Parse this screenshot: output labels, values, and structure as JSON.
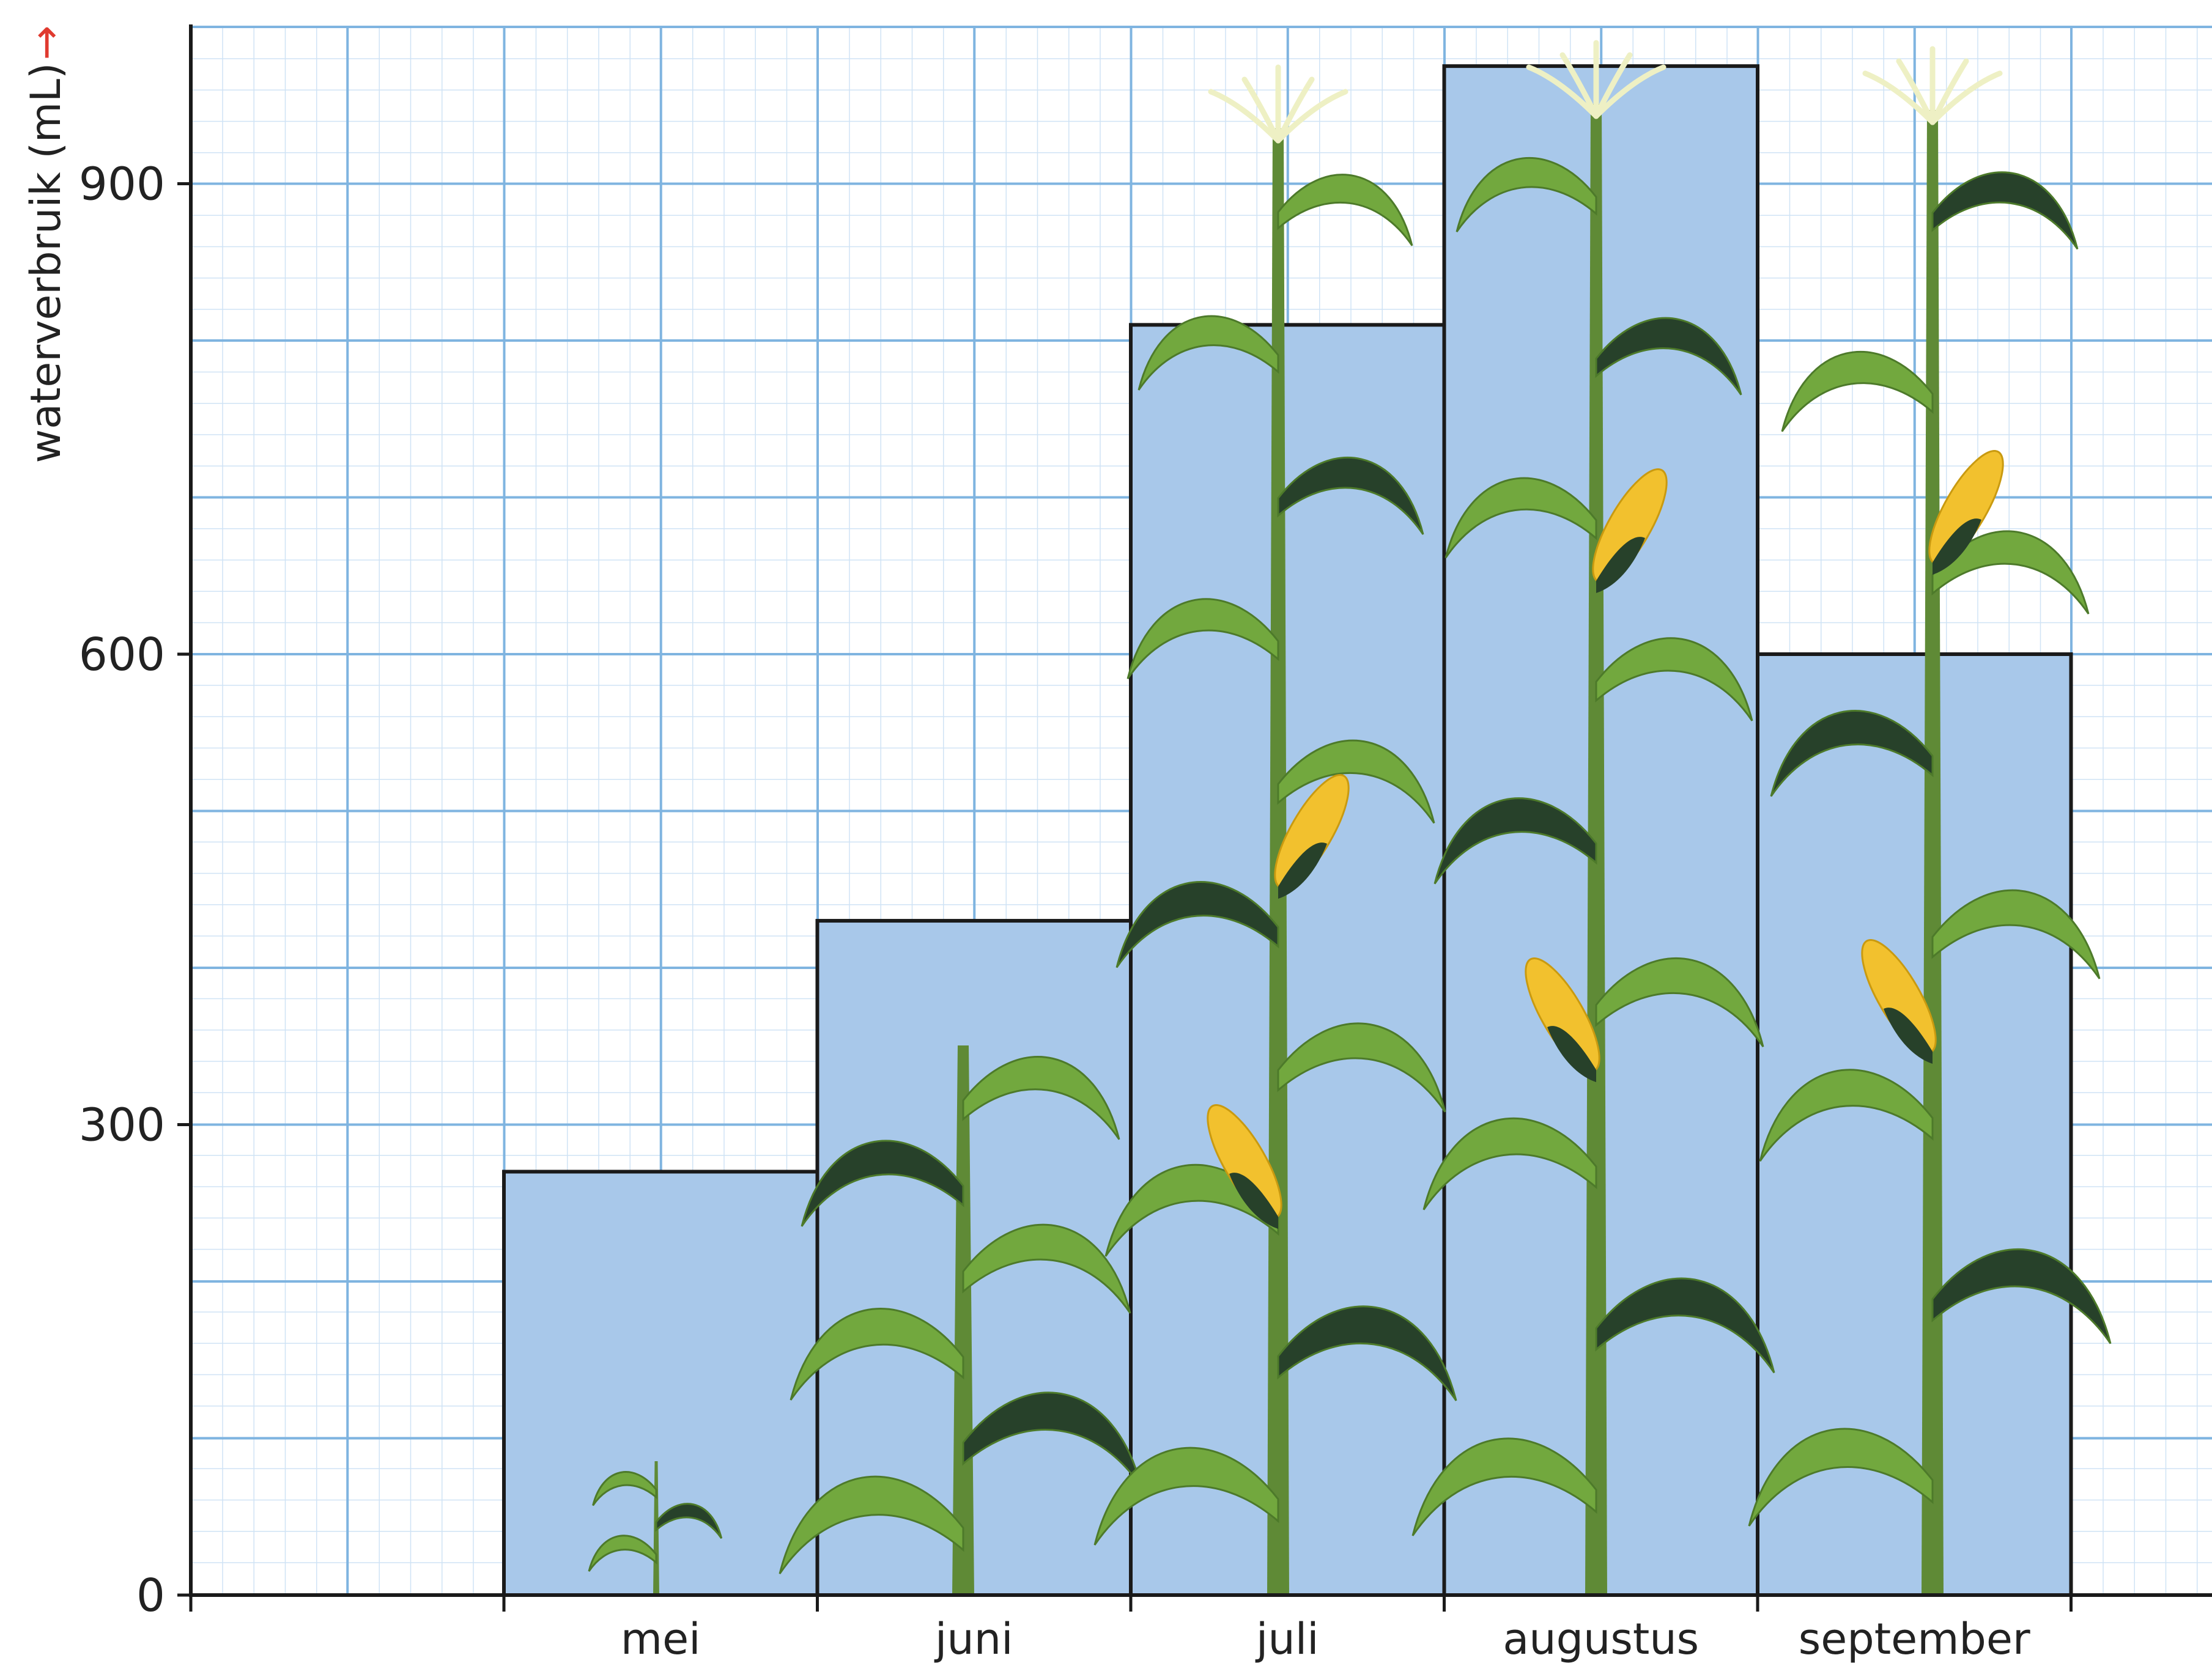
{
  "chart_data": {
    "type": "bar",
    "title": "",
    "xlabel": "",
    "ylabel": "waterverbruik (mL)",
    "ylabel_arrow": "→",
    "categories": [
      "mei",
      "juni",
      "juli",
      "augustus",
      "september"
    ],
    "values": [
      270,
      430,
      810,
      975,
      600
    ],
    "ylim": [
      0,
      1000
    ],
    "yticks": [
      0,
      300,
      600,
      900
    ],
    "grid": true,
    "legend": "none",
    "colors": {
      "bar_fill": "#a8c8ea",
      "bar_stroke": "#1a1a1a",
      "grid_major": "#7fb4e0",
      "grid_minor": "#cfe3f5",
      "arrow": "#e03a2f",
      "plant_stem": "#5f8a36",
      "plant_leaf": "#72a83e",
      "plant_leaf_dark": "#27412a",
      "corn": "#f2c12e",
      "tassel": "#eef0c4"
    },
    "illustration": "maize-plant-growth-icons"
  }
}
